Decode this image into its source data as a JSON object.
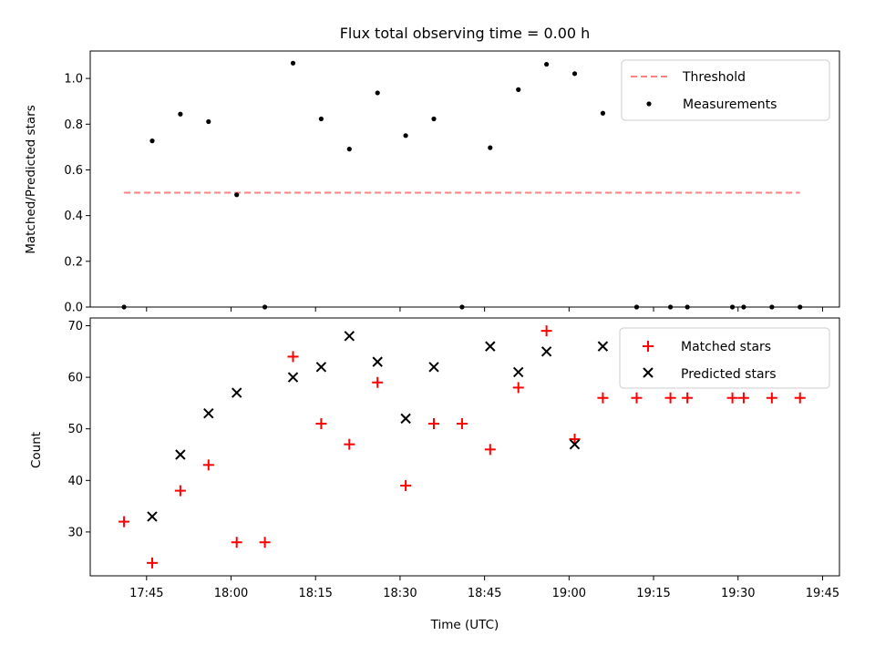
{
  "chart_data": [
    {
      "type": "scatter",
      "title": "Flux total observing time = 0.00 h",
      "ylabel": "Matched/Predicted stars",
      "xlabel": "",
      "ylim": [
        0,
        1.12
      ],
      "yticks": [
        "0.0",
        "0.2",
        "0.4",
        "0.6",
        "0.8",
        "1.0"
      ],
      "ytick_values": [
        0,
        0.2,
        0.4,
        0.6,
        0.8,
        1.0
      ],
      "legend": {
        "placement": "upper-right",
        "entries": [
          "Threshold",
          "Measurements"
        ]
      },
      "threshold": {
        "name": "Threshold",
        "value": 0.5,
        "x_start": "17:41",
        "x_end": "19:41",
        "color": "#ff8080"
      },
      "series": [
        {
          "name": "Measurements",
          "x": [
            "17:41",
            "17:46",
            "17:51",
            "17:56",
            "18:01",
            "18:06",
            "18:11",
            "18:16",
            "18:21",
            "18:26",
            "18:31",
            "18:36",
            "18:41",
            "18:46",
            "18:51",
            "18:56",
            "19:01",
            "19:06",
            "19:12",
            "19:18",
            "19:21",
            "19:29",
            "19:31",
            "19:36",
            "19:41"
          ],
          "y": [
            0.0,
            0.727,
            0.844,
            0.811,
            0.491,
            0.0,
            1.067,
            0.823,
            0.691,
            0.937,
            0.75,
            0.823,
            0.0,
            0.697,
            0.951,
            1.062,
            1.021,
            0.848,
            0.0,
            0.0,
            0.0,
            0.0,
            0.0,
            0.0,
            0.0
          ],
          "color": "#000000"
        }
      ]
    },
    {
      "type": "scatter",
      "title": "",
      "ylabel": "Count",
      "xlabel": "Time (UTC)",
      "ylim": [
        21.5,
        71.5
      ],
      "yticks": [
        "30",
        "40",
        "50",
        "60",
        "70"
      ],
      "ytick_values": [
        30,
        40,
        50,
        60,
        70
      ],
      "xlim": [
        "17:35",
        "19:48"
      ],
      "xticks": [
        "17:45",
        "18:00",
        "18:15",
        "18:30",
        "18:45",
        "19:00",
        "19:15",
        "19:30",
        "19:45"
      ],
      "legend": {
        "placement": "upper-right",
        "entries": [
          "Matched stars",
          "Predicted stars"
        ]
      },
      "series": [
        {
          "name": "Matched stars",
          "marker": "plus",
          "color": "#ff0000",
          "x": [
            "17:41",
            "17:46",
            "17:51",
            "17:56",
            "18:01",
            "18:06",
            "18:11",
            "18:16",
            "18:21",
            "18:26",
            "18:31",
            "18:36",
            "18:41",
            "18:46",
            "18:51",
            "18:56",
            "19:01",
            "19:06",
            "19:12",
            "19:18",
            "19:21",
            "19:29",
            "19:31",
            "19:36",
            "19:41"
          ],
          "y": [
            32,
            24,
            38,
            43,
            28,
            28,
            64,
            51,
            47,
            59,
            39,
            51,
            51,
            46,
            58,
            69,
            48,
            56,
            56,
            56,
            56,
            56,
            56,
            56,
            56
          ]
        },
        {
          "name": "Predicted stars",
          "marker": "x",
          "color": "#000000",
          "x": [
            "17:46",
            "17:51",
            "17:56",
            "18:01",
            "18:11",
            "18:16",
            "18:21",
            "18:26",
            "18:31",
            "18:36",
            "18:46",
            "18:51",
            "18:56",
            "19:01",
            "19:06"
          ],
          "y": [
            33,
            45,
            53,
            57,
            60,
            62,
            68,
            63,
            52,
            62,
            66,
            61,
            65,
            47,
            66
          ]
        }
      ]
    }
  ]
}
